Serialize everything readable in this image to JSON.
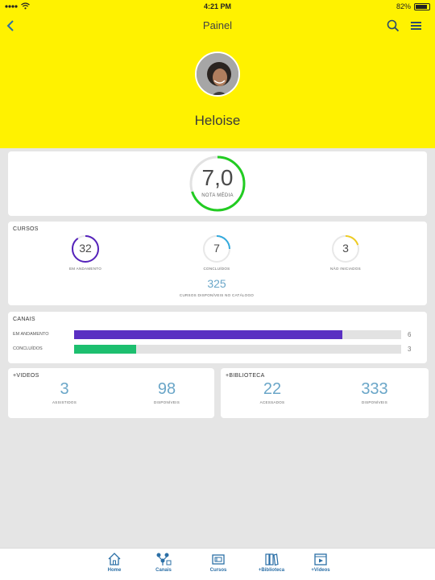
{
  "status_bar": {
    "time": "4:21 PM",
    "battery": "82%"
  },
  "header": {
    "title": "Painel",
    "user_name": "Heloise"
  },
  "average": {
    "value": "7,0",
    "label": "NOTA MÉDIA",
    "fraction": 0.7,
    "color": "#22cc22"
  },
  "courses": {
    "title": "CURSOS",
    "in_progress": {
      "value": "32",
      "label": "EM ANDAMENTO",
      "color": "#5522bb",
      "fraction": 0.9
    },
    "completed": {
      "value": "7",
      "label": "CONCLUÍDOS",
      "color": "#33aadd",
      "fraction": 0.25
    },
    "not_started": {
      "value": "3",
      "label": "NÃO INICIADOS",
      "color": "#eecc22",
      "fraction": 0.2
    },
    "catalog": {
      "value": "325",
      "label": "CURSOS DISPONÍVEIS NO CATÁLOGO"
    }
  },
  "channels": {
    "title": "CANAIS",
    "rows": [
      {
        "label": "EM ANDAMENTO",
        "count": "6",
        "fraction": 0.82,
        "color": "#5a2fc2"
      },
      {
        "label": "CONCLUÍDOS",
        "count": "3",
        "fraction": 0.19,
        "color": "#1dbf6f"
      }
    ]
  },
  "videos": {
    "title": "+VIDEOS",
    "watched": {
      "value": "3",
      "label": "ASSISTIDOS"
    },
    "available": {
      "value": "98",
      "label": "DISPONÍVEIS"
    }
  },
  "library": {
    "title": "+BIBLIOTECA",
    "accessed": {
      "value": "22",
      "label": "ACESSADOS"
    },
    "available": {
      "value": "333",
      "label": "DISPONÍVEIS"
    }
  },
  "tabs": [
    {
      "label": "Home",
      "icon": "home-icon"
    },
    {
      "label": "Canais",
      "icon": "channels-icon"
    },
    {
      "label": "Cursos",
      "icon": "courses-icon"
    },
    {
      "label": "+Biblioteca",
      "icon": "library-icon"
    },
    {
      "label": "+Vídeos",
      "icon": "videos-icon"
    }
  ]
}
